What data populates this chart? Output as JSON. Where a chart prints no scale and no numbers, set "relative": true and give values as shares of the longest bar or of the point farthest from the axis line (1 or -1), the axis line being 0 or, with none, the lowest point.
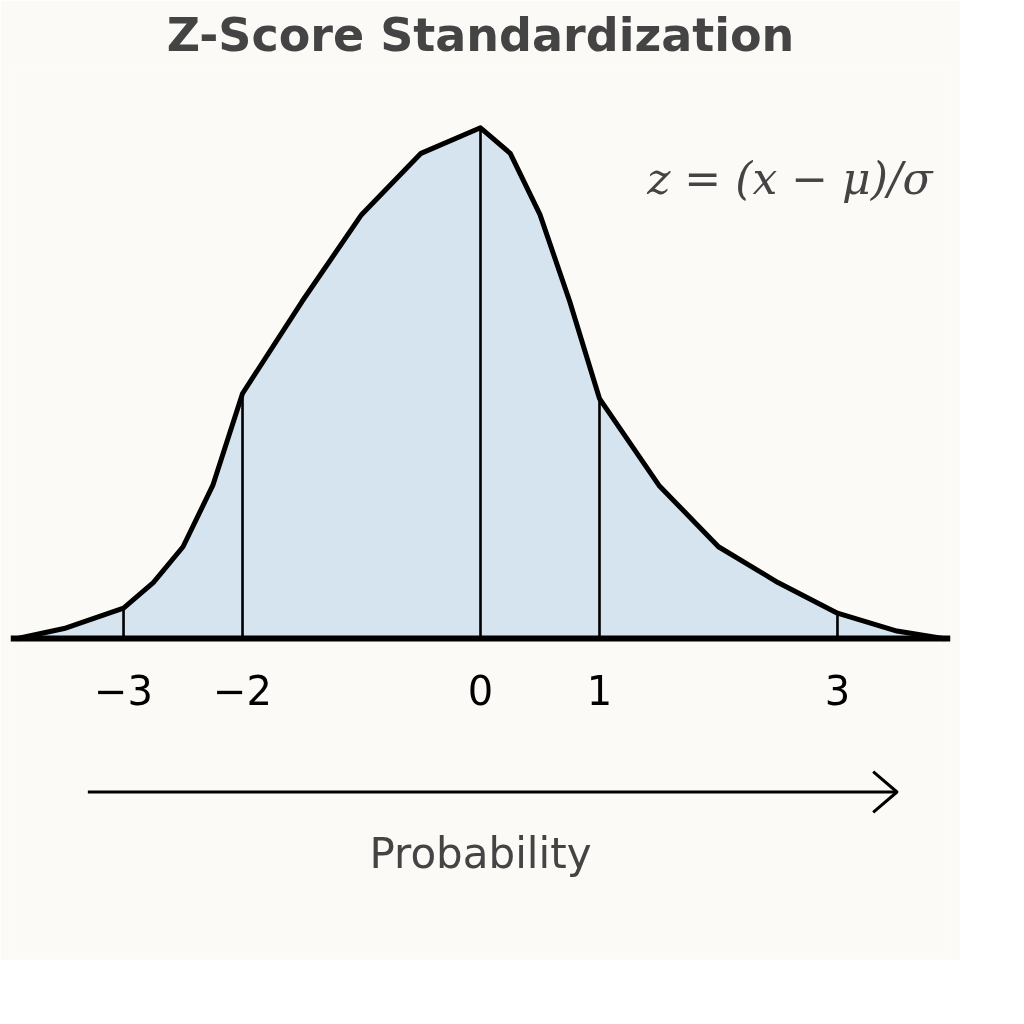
{
  "chart_data": {
    "type": "area",
    "title": "Z-Score Standardization",
    "xlabel": "Probability",
    "relative": true,
    "x": [
      -3.9,
      -3.5,
      -3,
      -2.75,
      -2.5,
      -2.25,
      -2,
      -1.5,
      -1,
      -0.5,
      0,
      0.25,
      0.5,
      0.75,
      1,
      1.5,
      2,
      2.5,
      3,
      3.5,
      3.9
    ],
    "series": [
      {
        "color": "#d6e4ef",
        "values": [
          0,
          0.02,
          0.06,
          0.11,
          0.18,
          0.3,
          0.48,
          0.66,
          0.83,
          0.95,
          1,
          0.95,
          0.83,
          0.66,
          0.47,
          0.3,
          0.18,
          0.11,
          0.05,
          0.015,
          0
        ]
      },
      {
        "type": "bar",
        "color": "#000000",
        "x": [
          -3,
          -2,
          0,
          1,
          3
        ],
        "values": [
          0.06,
          0.48,
          1,
          0.47,
          0.05
        ]
      }
    ],
    "xlim": [
      -3.95,
      3.95
    ],
    "xticks": [
      {
        "value": -3,
        "label": "−3"
      },
      {
        "value": -2,
        "label": "−2"
      },
      0,
      1,
      3
    ],
    "annotations": [
      "z = (x − μ)/σ"
    ],
    "grid": false
  }
}
